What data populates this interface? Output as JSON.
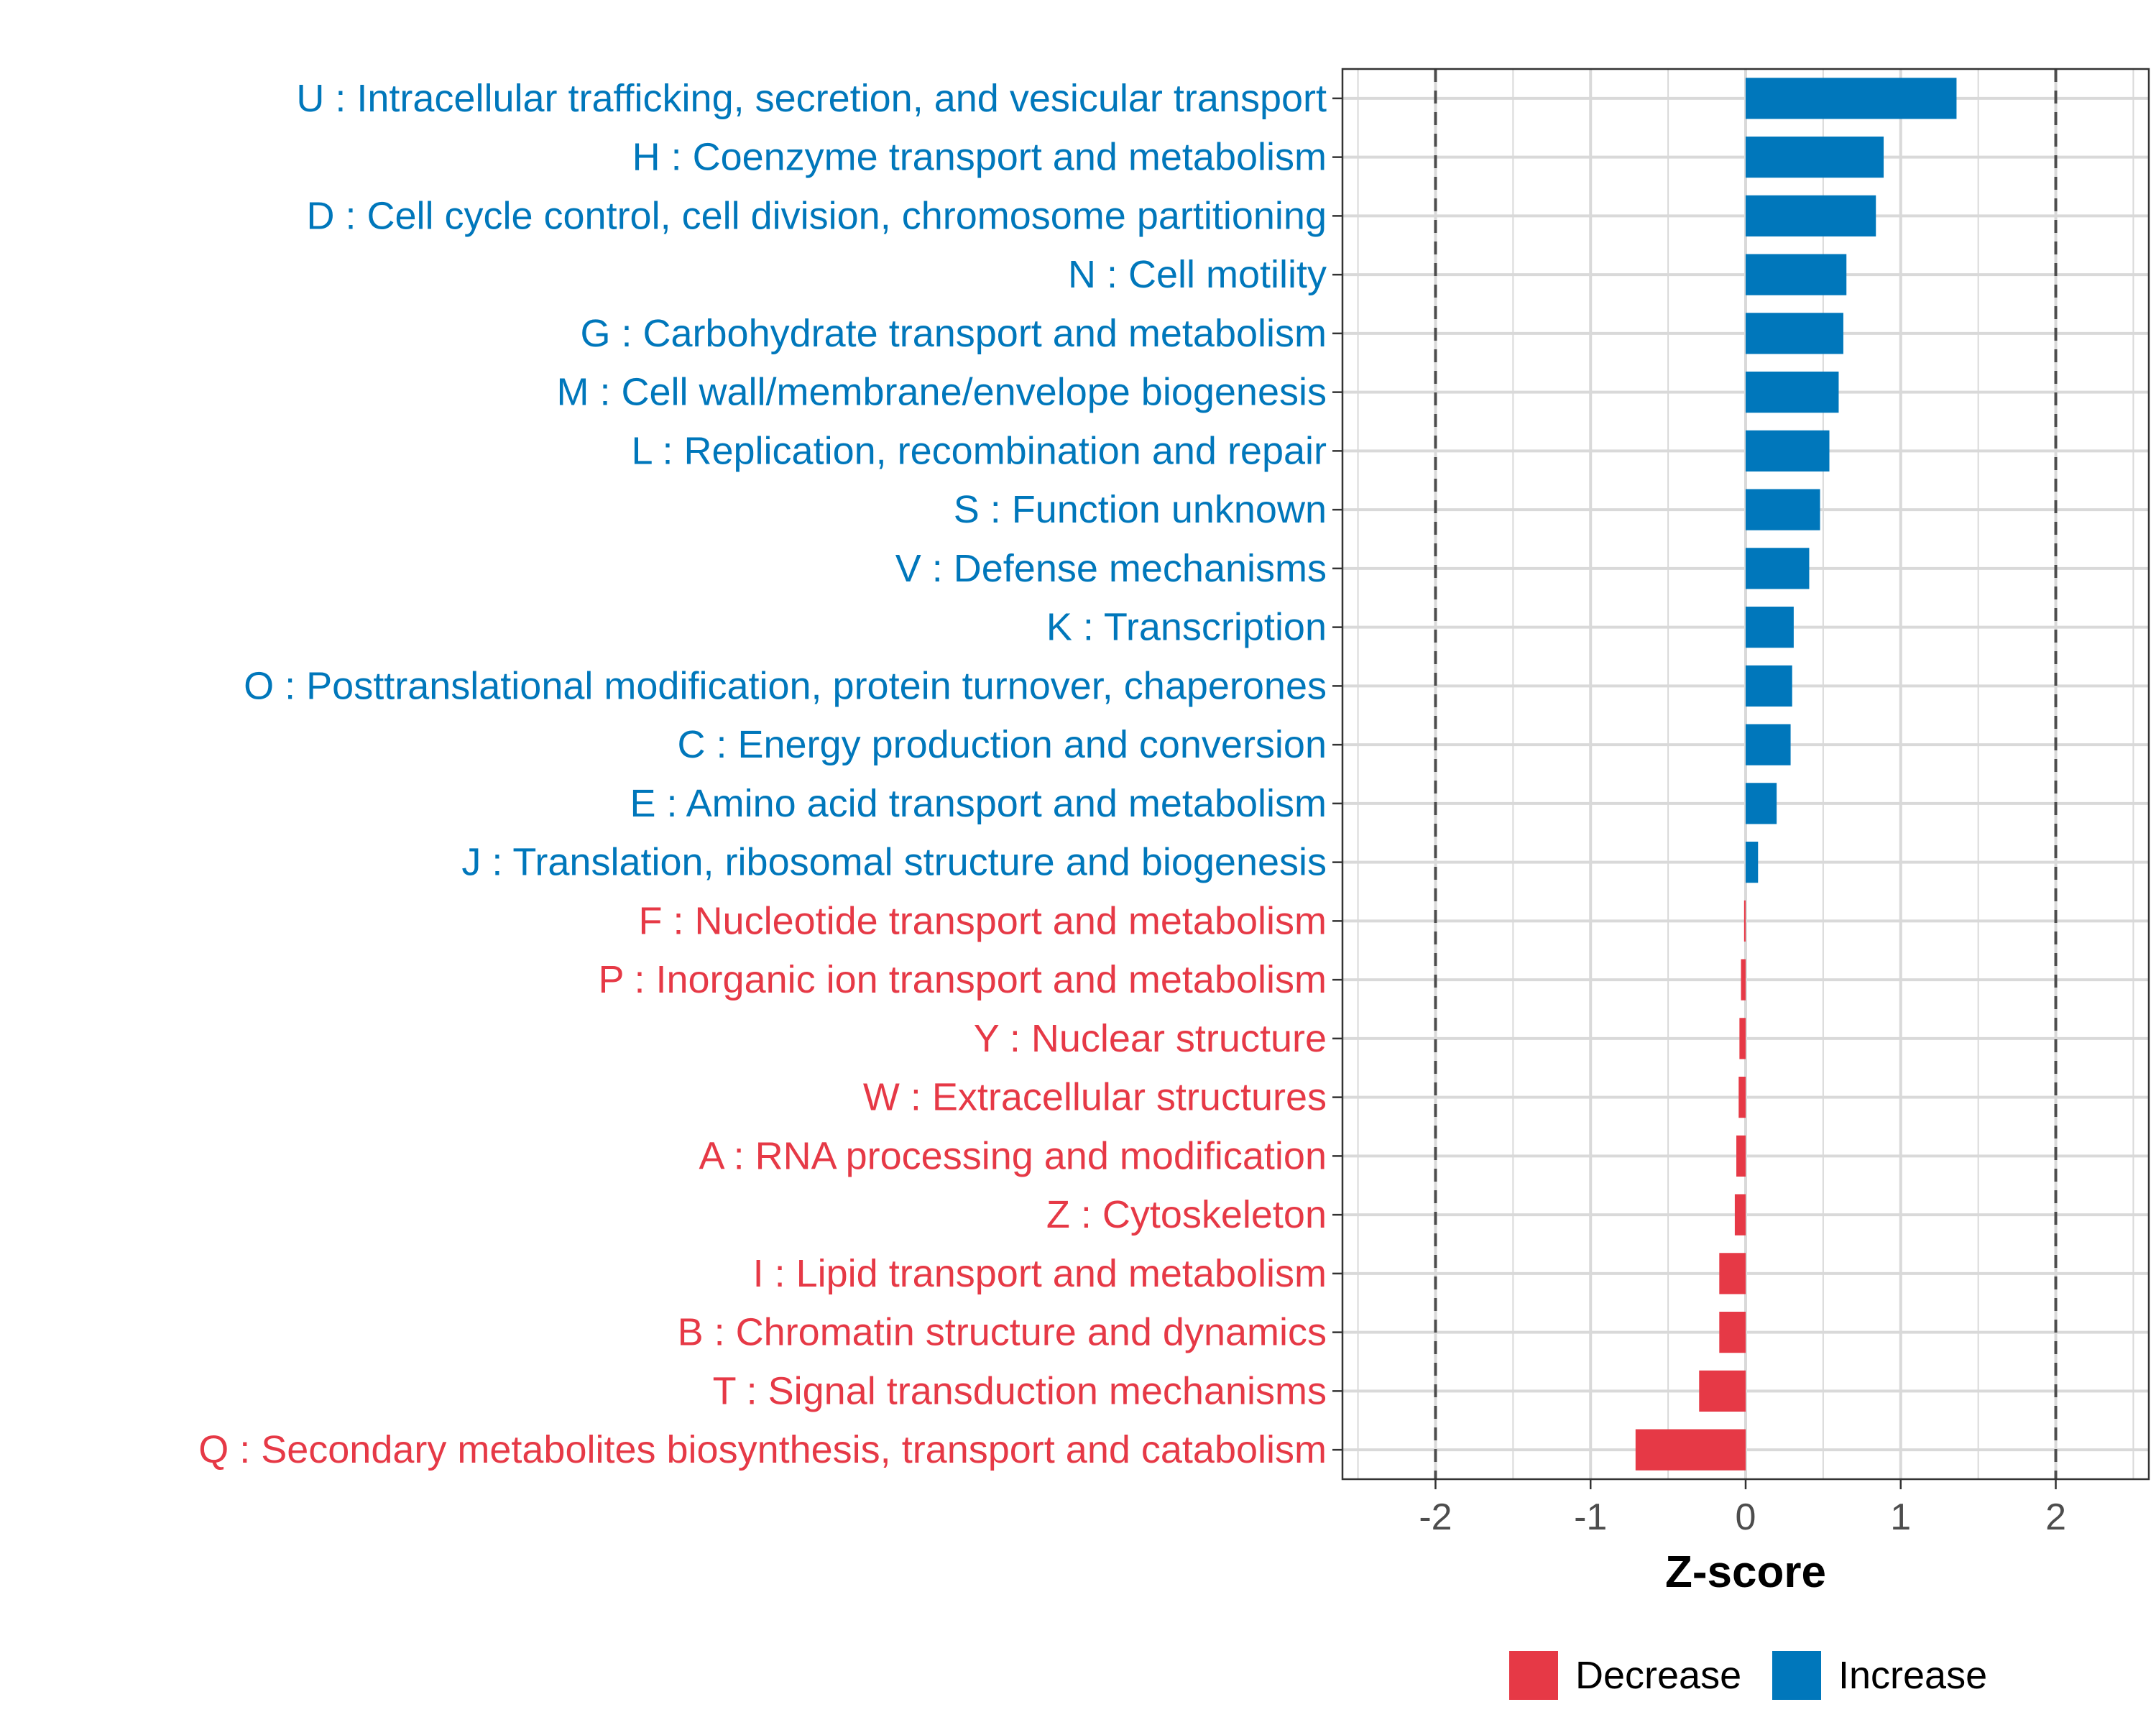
{
  "chart_data": {
    "type": "bar",
    "orientation": "horizontal",
    "title": "",
    "xlabel": "Z-score",
    "ylabel": "",
    "xlim": [
      -2.6,
      2.6
    ],
    "xticks": [
      -2,
      -1,
      0,
      1,
      2
    ],
    "xtick_labels": [
      "-2",
      "-1",
      "0",
      "1",
      "2"
    ],
    "reference_lines": [
      -2,
      2
    ],
    "grid": true,
    "colors": {
      "Decrease": "#E63946",
      "Increase": "#0077BB",
      "grid": "#D9D9D9",
      "axis_text": "#4D4D4D"
    },
    "categories": [
      "U : Intracellular trafficking, secretion, and vesicular transport",
      "H : Coenzyme transport and metabolism",
      "D : Cell cycle control, cell division, chromosome partitioning",
      "N : Cell motility",
      "G : Carbohydrate transport and metabolism",
      "M : Cell wall/membrane/envelope biogenesis",
      "L : Replication, recombination and repair",
      "S : Function unknown",
      "V : Defense mechanisms",
      "K : Transcription",
      "O : Posttranslational modification, protein turnover, chaperones",
      "C : Energy production and conversion",
      "E : Amino acid transport and metabolism",
      "J : Translation, ribosomal structure and biogenesis",
      "F : Nucleotide transport and metabolism",
      "P : Inorganic ion transport and metabolism",
      "Y : Nuclear structure",
      "W : Extracellular structures",
      "A : RNA processing and modification",
      "Z : Cytoskeleton",
      "I : Lipid transport and metabolism",
      "B : Chromatin structure and dynamics",
      "T : Signal transduction mechanisms",
      "Q : Secondary metabolites biosynthesis, transport and catabolism"
    ],
    "values": [
      1.36,
      0.89,
      0.84,
      0.65,
      0.63,
      0.6,
      0.54,
      0.48,
      0.41,
      0.31,
      0.3,
      0.29,
      0.2,
      0.08,
      -0.01,
      -0.03,
      -0.04,
      -0.045,
      -0.06,
      -0.07,
      -0.17,
      -0.17,
      -0.3,
      -0.71
    ],
    "groups": [
      "Increase",
      "Increase",
      "Increase",
      "Increase",
      "Increase",
      "Increase",
      "Increase",
      "Increase",
      "Increase",
      "Increase",
      "Increase",
      "Increase",
      "Increase",
      "Increase",
      "Decrease",
      "Decrease",
      "Decrease",
      "Decrease",
      "Decrease",
      "Decrease",
      "Decrease",
      "Decrease",
      "Decrease",
      "Decrease"
    ],
    "legend": {
      "position": "bottom",
      "entries": [
        {
          "name": "Decrease"
        },
        {
          "name": "Increase"
        }
      ]
    }
  }
}
